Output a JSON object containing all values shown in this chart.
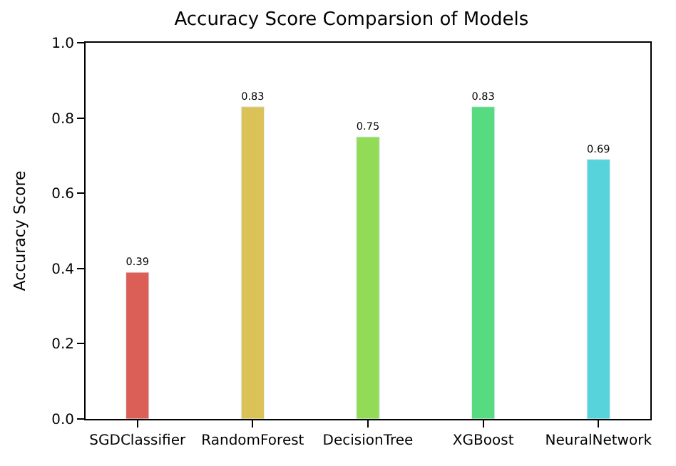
{
  "chart_data": {
    "type": "bar",
    "title": "Accuracy Score Comparsion of Models",
    "ylabel": "Accuracy Score",
    "categories": [
      "SGDClassifier",
      "RandomForest",
      "DecisionTree",
      "XGBoost",
      "NeuralNetwork"
    ],
    "values": [
      0.39,
      0.83,
      0.75,
      0.83,
      0.69
    ],
    "colors": [
      "#db5f57",
      "#dbc257",
      "#91db57",
      "#57db80",
      "#57d3db"
    ],
    "ylim": [
      0,
      1.0
    ],
    "yticks": [
      {
        "value": 0,
        "label": "0.0"
      },
      {
        "value": 0.2,
        "label": "0.2"
      },
      {
        "value": 0.4,
        "label": "0.4"
      },
      {
        "value": 0.6,
        "label": "0.6"
      },
      {
        "value": 0.8,
        "label": "0.8"
      },
      {
        "value": 1.0,
        "label": "1.0"
      }
    ],
    "data_labels": true
  }
}
